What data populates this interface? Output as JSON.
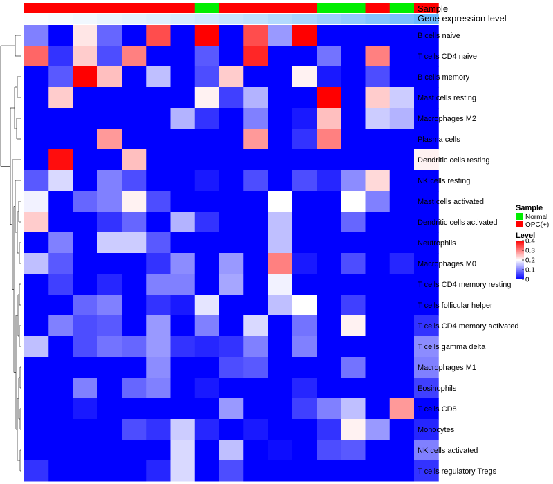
{
  "chart_data": {
    "type": "heatmap",
    "title": "",
    "annotations": {
      "sample_label": "Sample",
      "expression_label": "Gene expression level",
      "sample_groups": [
        "OPC(+)",
        "OPC(+)",
        "OPC(+)",
        "OPC(+)",
        "OPC(+)",
        "OPC(+)",
        "OPC(+)",
        "Normal",
        "OPC(+)",
        "OPC(+)",
        "OPC(+)",
        "OPC(+)",
        "Normal",
        "Normal",
        "OPC(+)",
        "Normal",
        "OPC(+)"
      ],
      "expression_levels": [
        0.02,
        0.05,
        0.08,
        0.12,
        0.15,
        0.18,
        0.22,
        0.27,
        0.31,
        0.36,
        0.42,
        0.48,
        0.55,
        0.61,
        0.68,
        0.74,
        0.82
      ]
    },
    "rows": [
      "B cells naive",
      "T cells CD4 naive",
      "B cells memory",
      "Mast cells resting",
      "Macrophages M2",
      "Plasma cells",
      "Dendritic cells resting",
      "NK cells resting",
      "Mast cells activated",
      "Dendritic cells activated",
      "Neutrophils",
      "Macrophages M0",
      "T cells CD4 memory resting",
      "T cells follicular helper",
      "T cells CD4 memory activated",
      "T cells gamma delta",
      "Macrophages M1",
      "Eosinophils",
      "T cells CD8",
      "Monocytes",
      "NK cells activated",
      "T cells regulatory  Tregs"
    ],
    "values": [
      [
        0.1,
        0.0,
        0.22,
        0.08,
        0.0,
        0.34,
        0.0,
        0.4,
        0.0,
        0.34,
        0.12,
        0.4,
        0.0,
        0.0,
        0.0,
        0.0,
        0.0
      ],
      [
        0.32,
        0.04,
        0.24,
        0.06,
        0.3,
        0.0,
        0.0,
        0.07,
        0.0,
        0.37,
        0.0,
        0.0,
        0.09,
        0.0,
        0.3,
        0.0,
        0.0
      ],
      [
        0.0,
        0.07,
        0.4,
        0.25,
        0.0,
        0.15,
        0.0,
        0.06,
        0.24,
        0.0,
        0.0,
        0.21,
        0.02,
        0.0,
        0.06,
        0.0,
        0.0
      ],
      [
        0.0,
        0.24,
        0.0,
        0.0,
        0.0,
        0.0,
        0.0,
        0.21,
        0.05,
        0.14,
        0.0,
        0.0,
        0.4,
        0.0,
        0.24,
        0.16,
        0.0
      ],
      [
        0.0,
        0.0,
        0.0,
        0.0,
        0.0,
        0.0,
        0.14,
        0.04,
        0.0,
        0.1,
        0.0,
        0.02,
        0.25,
        0.0,
        0.16,
        0.14,
        0.0
      ],
      [
        0.0,
        0.0,
        0.0,
        0.28,
        0.0,
        0.0,
        0.0,
        0.0,
        0.0,
        0.28,
        0.0,
        0.04,
        0.3,
        0.0,
        0.0,
        0.0,
        0.0
      ],
      [
        0.0,
        0.39,
        0.0,
        0.0,
        0.25,
        0.0,
        0.0,
        0.0,
        0.0,
        0.0,
        0.0,
        0.0,
        0.0,
        0.0,
        0.0,
        0.0,
        0.21
      ],
      [
        0.07,
        0.17,
        0.0,
        0.1,
        0.06,
        0.0,
        0.0,
        0.02,
        0.0,
        0.06,
        0.0,
        0.06,
        0.03,
        0.11,
        0.23,
        0.0,
        0.0
      ],
      [
        0.19,
        0.0,
        0.08,
        0.1,
        0.21,
        0.06,
        0.0,
        0.0,
        0.0,
        0.0,
        0.2,
        0.0,
        0.0,
        0.2,
        0.1,
        0.0,
        0.0
      ],
      [
        0.24,
        0.0,
        0.0,
        0.04,
        0.08,
        0.0,
        0.14,
        0.04,
        0.0,
        0.0,
        0.15,
        0.0,
        0.0,
        0.08,
        0.0,
        0.0,
        0.0
      ],
      [
        0.0,
        0.1,
        0.0,
        0.16,
        0.16,
        0.07,
        0.0,
        0.0,
        0.0,
        0.0,
        0.15,
        0.0,
        0.0,
        0.0,
        0.0,
        0.0,
        0.0
      ],
      [
        0.15,
        0.07,
        0.0,
        0.0,
        0.0,
        0.04,
        0.11,
        0.0,
        0.12,
        0.0,
        0.3,
        0.02,
        0.0,
        0.06,
        0.0,
        0.03,
        0.0
      ],
      [
        0.0,
        0.05,
        0.0,
        0.03,
        0.0,
        0.1,
        0.1,
        0.0,
        0.13,
        0.0,
        0.19,
        0.0,
        0.0,
        0.0,
        0.0,
        0.0,
        0.0
      ],
      [
        0.0,
        0.0,
        0.08,
        0.1,
        0.0,
        0.04,
        0.02,
        0.18,
        0.0,
        0.0,
        0.15,
        0.2,
        0.0,
        0.05,
        0.0,
        0.0,
        0.0
      ],
      [
        0.0,
        0.1,
        0.06,
        0.07,
        0.0,
        0.12,
        0.0,
        0.1,
        0.0,
        0.17,
        0.0,
        0.09,
        0.0,
        0.21,
        0.0,
        0.0,
        0.04
      ],
      [
        0.15,
        0.0,
        0.06,
        0.09,
        0.08,
        0.12,
        0.04,
        0.03,
        0.04,
        0.1,
        0.0,
        0.1,
        0.0,
        0.0,
        0.0,
        0.0,
        0.11
      ],
      [
        0.0,
        0.0,
        0.0,
        0.0,
        0.0,
        0.11,
        0.0,
        0.0,
        0.06,
        0.07,
        0.0,
        0.0,
        0.0,
        0.09,
        0.0,
        0.0,
        0.1
      ],
      [
        0.0,
        0.0,
        0.1,
        0.0,
        0.08,
        0.1,
        0.0,
        0.02,
        0.0,
        0.0,
        0.0,
        0.03,
        0.0,
        0.0,
        0.0,
        0.0,
        0.05
      ],
      [
        0.0,
        0.0,
        0.02,
        0.0,
        0.0,
        0.0,
        0.0,
        0.0,
        0.12,
        0.0,
        0.0,
        0.05,
        0.1,
        0.15,
        0.0,
        0.28,
        0.0
      ],
      [
        0.0,
        0.0,
        0.0,
        0.0,
        0.06,
        0.04,
        0.16,
        0.03,
        0.0,
        0.02,
        0.0,
        0.0,
        0.04,
        0.21,
        0.12,
        0.0,
        0.03
      ],
      [
        0.0,
        0.0,
        0.0,
        0.0,
        0.0,
        0.0,
        0.17,
        0.0,
        0.15,
        0.0,
        0.01,
        0.0,
        0.06,
        0.07,
        0.0,
        0.0,
        0.1
      ],
      [
        0.04,
        0.0,
        0.0,
        0.0,
        0.0,
        0.03,
        0.17,
        0.0,
        0.06,
        0.0,
        0.0,
        0.0,
        0.0,
        0.0,
        0.0,
        0.0,
        0.04
      ]
    ],
    "legend": {
      "sample_title": "Sample",
      "sample_entries": [
        {
          "label": "Normal",
          "color": "#00ee00"
        },
        {
          "label": "OPC(+)",
          "color": "#ff0000"
        }
      ],
      "level_title": "Level",
      "level_ticks": [
        "0.4",
        "0.3",
        "0.2",
        "0.1",
        "0"
      ],
      "level_tick_values": [
        0.4,
        0.3,
        0.2,
        0.1,
        0.0
      ],
      "color_range": [
        0,
        0.4
      ],
      "colors": {
        "low": "#0000ff",
        "mid": "#ffffff",
        "high": "#ff0000"
      },
      "expression_colors": {
        "low": "#ffffff",
        "high": "#4aa8ff"
      }
    }
  }
}
